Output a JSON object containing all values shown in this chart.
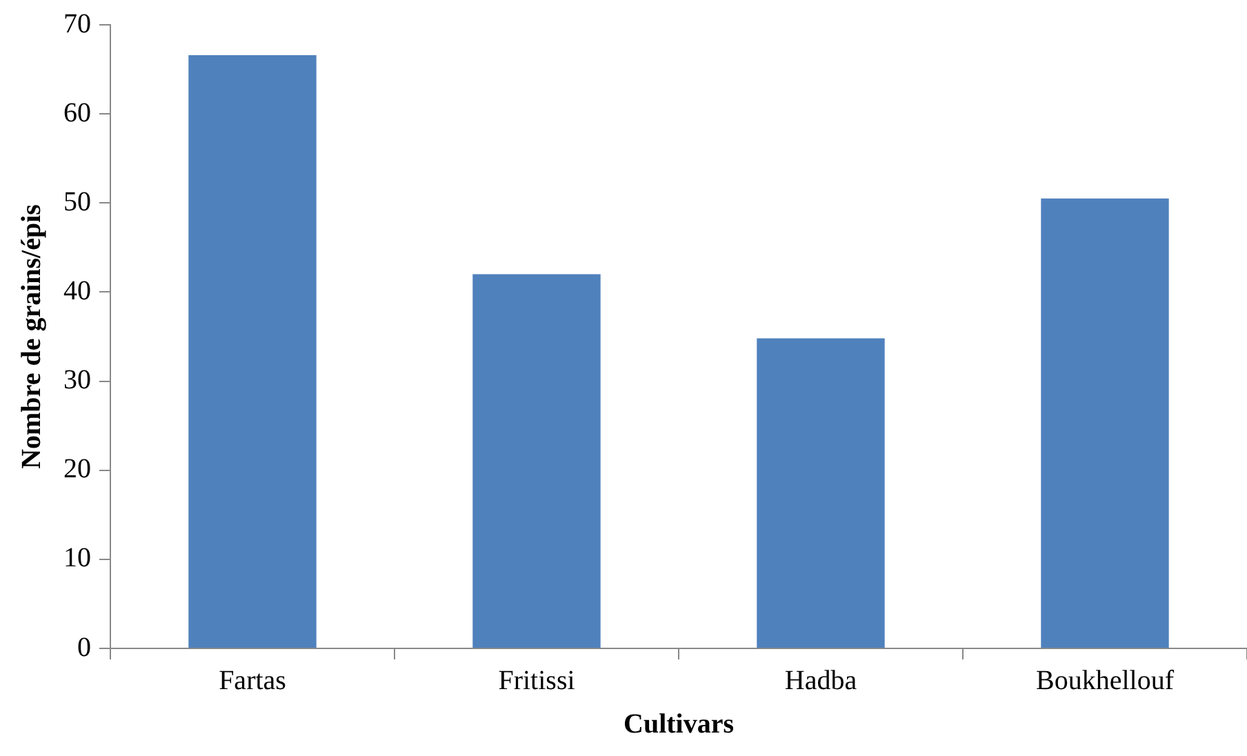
{
  "chart_data": {
    "type": "bar",
    "xlabel": "Cultivars",
    "ylabel": "Nombre de grains/épis",
    "categories": [
      "Fartas",
      "Fritissi",
      "Hadba",
      "Boukhellouf"
    ],
    "values": [
      66.6,
      42.0,
      34.8,
      50.5
    ],
    "color": "#4f81bd",
    "ylim": [
      0,
      70
    ],
    "yticks": [
      0,
      10,
      20,
      30,
      40,
      50,
      60,
      70
    ],
    "grid": false,
    "legend": false
  }
}
